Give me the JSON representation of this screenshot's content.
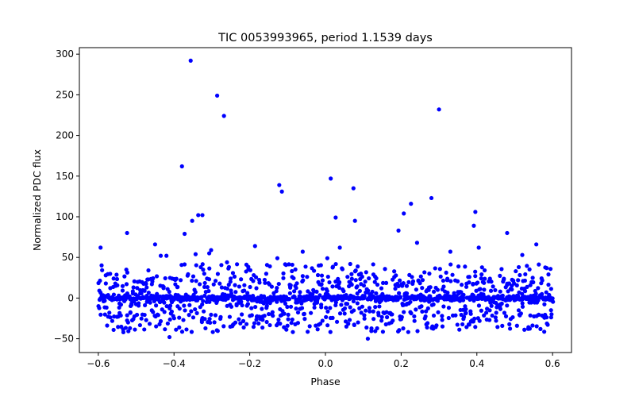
{
  "chart_data": {
    "type": "scatter",
    "title": "TIC 0053993965, period 1.1539 days",
    "xlabel": "Phase",
    "ylabel": "Normalized PDC flux",
    "xlim": [
      -0.65,
      0.65
    ],
    "ylim": [
      -67,
      308
    ],
    "xticks": [
      -0.6,
      -0.4,
      -0.2,
      0.0,
      0.2,
      0.4,
      0.6
    ],
    "xtick_labels": [
      "−0.6",
      "−0.4",
      "−0.2",
      "0.0",
      "0.2",
      "0.4",
      "0.6"
    ],
    "yticks": [
      -50,
      0,
      50,
      100,
      150,
      200,
      250,
      300
    ],
    "ytick_labels": [
      "−50",
      "0",
      "50",
      "100",
      "150",
      "200",
      "250",
      "300"
    ],
    "marker_color": "#0000ff",
    "grid": false,
    "series": [
      {
        "name": "flux",
        "note": "dense cloud of ~2000 points between about -50 and +60 across the full phase range (-0.6 to 0.6)",
        "x": [
          -0.594,
          -0.524,
          -0.45,
          -0.435,
          -0.42,
          -0.412,
          -0.379,
          -0.372,
          -0.356,
          -0.352,
          -0.343,
          -0.336,
          -0.325,
          -0.307,
          -0.302,
          -0.286,
          -0.268,
          -0.26,
          -0.186,
          -0.127,
          -0.122,
          -0.115,
          -0.06,
          0.005,
          0.014,
          0.027,
          0.038,
          0.074,
          0.078,
          0.112,
          0.193,
          0.207,
          0.226,
          0.242,
          0.28,
          0.3,
          0.33,
          0.392,
          0.396,
          0.405,
          0.48,
          0.52,
          0.557
        ],
        "y": [
          62,
          80,
          66,
          52,
          52,
          -48,
          162,
          79,
          292,
          95,
          54,
          102,
          102,
          55,
          59,
          249,
          224,
          44,
          64,
          49,
          139,
          131,
          57,
          49,
          147,
          99,
          62,
          135,
          95,
          -50,
          83,
          104,
          116,
          68,
          123,
          232,
          57,
          89,
          106,
          62,
          80,
          53,
          66
        ]
      }
    ]
  }
}
